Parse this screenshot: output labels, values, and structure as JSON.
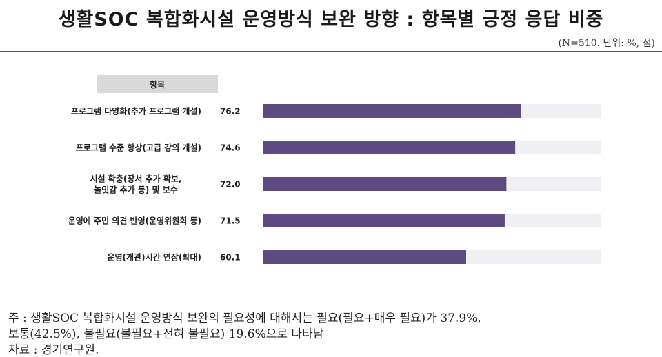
{
  "title": "생활SOC 복합화시설 운영방식 보완 방향 : 항목별 긍정 응답 비중",
  "unit_note": "(N=510. 단위: %, 점)",
  "colors": {
    "bar": "#5c4a80",
    "track": "#f0eff4"
  },
  "chart_data": {
    "type": "bar",
    "orientation": "horizontal",
    "column_header": "항목",
    "categories": [
      [
        "프로그램 다양화(추가 프로그램 개설)"
      ],
      [
        "프로그램 수준 향상(고급 강의 개설)"
      ],
      [
        "시설 확충(장서 추가 확보,",
        "놀잇감 추가 등) 및 보수"
      ],
      [
        "운영에 주민 의견 반영(운영위원회 등)"
      ],
      [
        "운영(개관)시간 연장(확대)"
      ]
    ],
    "value_labels": [
      "76.2",
      "74.6",
      "72.0",
      "71.5",
      "60.1"
    ],
    "values": [
      76.2,
      74.6,
      72.0,
      71.5,
      60.1
    ],
    "xlim": [
      0,
      100
    ],
    "grid": false,
    "legend": "none"
  },
  "footnote": {
    "line1": "주 : 생활SOC 복합화시설 운영방식 보완의 필요성에 대해서는 필요(필요+매우 필요)가 37.9%,",
    "line2": "보통(42.5%), 불필요(불필요+전혀 불필요) 19.6%으로 나타남",
    "line3": "자료 : 경기연구원."
  }
}
